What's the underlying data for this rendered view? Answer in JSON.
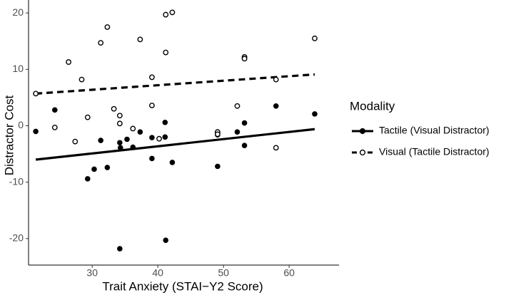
{
  "chart_data": {
    "type": "scatter",
    "x_label": "Trait Anxiety (STAI−Y2 Score)",
    "y_label": "Distractor Cost",
    "xlim": [
      20.3,
      67.6
    ],
    "ylim": [
      -24.7,
      22.3
    ],
    "xticks": [
      30,
      40,
      50,
      60
    ],
    "yticks": [
      -20,
      -10,
      0,
      10,
      20
    ],
    "grid": false,
    "legend_title": "Modality",
    "legend_position": "right",
    "series": [
      {
        "name": "Tactile (Visual Distractor)",
        "color": "#000000",
        "marker": "filled",
        "line_style": "solid",
        "x": [
          21.4,
          24.3,
          29.3,
          30.3,
          31.3,
          32.3,
          34.2,
          34.3,
          34.2,
          35.3,
          36.2,
          37.3,
          39.1,
          39.1,
          41.1,
          41.1,
          41.2,
          42.2,
          49.1,
          49.1,
          49.1,
          52.1,
          53.2,
          53.2,
          58.0,
          63.9
        ],
        "values": [
          -1.0,
          2.8,
          -9.4,
          -7.7,
          -2.6,
          -7.4,
          -3.0,
          -3.9,
          -21.8,
          -2.4,
          -3.8,
          -1.1,
          -5.8,
          -2.1,
          0.6,
          -2.0,
          -20.3,
          -6.5,
          -1.6,
          -7.2,
          -1.3,
          -1.1,
          -3.5,
          0.5,
          3.5,
          2.1
        ],
        "fit_x": [
          21.4,
          63.9
        ],
        "fit_values": [
          -6.0,
          -0.6
        ]
      },
      {
        "name": "Visual (Tactile Distractor)",
        "color": "#000000",
        "marker": "hollow",
        "line_style": "dashed",
        "x": [
          21.4,
          24.3,
          26.4,
          27.4,
          28.4,
          29.3,
          31.3,
          32.3,
          33.3,
          34.2,
          34.2,
          36.2,
          37.3,
          39.1,
          39.1,
          41.2,
          41.2,
          42.2,
          40.2,
          49.1,
          49.1,
          52.1,
          53.2,
          53.2,
          58.0,
          58.0,
          63.9
        ],
        "values": [
          5.7,
          -0.3,
          11.3,
          -2.8,
          8.2,
          1.5,
          14.7,
          17.5,
          3.0,
          1.8,
          0.4,
          -0.5,
          15.3,
          8.6,
          3.6,
          13.0,
          19.7,
          20.1,
          -2.3,
          -1.1,
          -1.5,
          3.5,
          12.2,
          11.9,
          8.2,
          -3.9,
          15.5
        ],
        "fit_x": [
          21.4,
          63.9
        ],
        "fit_values": [
          5.7,
          9.1
        ]
      }
    ]
  }
}
